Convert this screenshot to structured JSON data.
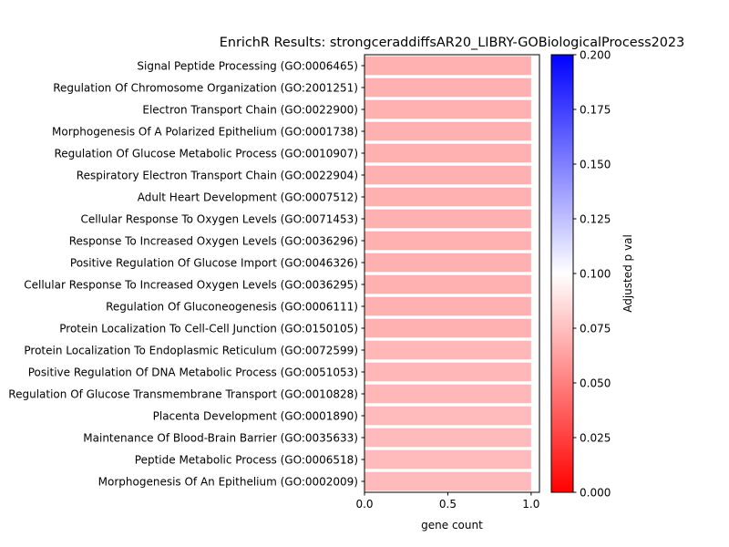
{
  "chart_data": {
    "type": "bar",
    "orientation": "horizontal",
    "title": "EnrichR Results: strongceraddiffsAR20_LIBRY-GOBiologicalProcess2023",
    "xlabel": "gene count",
    "ylabel": "",
    "xlim": [
      0,
      1.05
    ],
    "xticks": [
      "0.0",
      "0.5",
      "1.0"
    ],
    "categories": [
      "Signal Peptide Processing (GO:0006465)",
      "Regulation Of Chromosome Organization (GO:2001251)",
      "Electron Transport Chain (GO:0022900)",
      "Morphogenesis Of A Polarized Epithelium (GO:0001738)",
      "Regulation Of Glucose Metabolic Process (GO:0010907)",
      "Respiratory Electron Transport Chain (GO:0022904)",
      "Adult Heart Development (GO:0007512)",
      "Cellular Response To Oxygen Levels (GO:0071453)",
      "Response To Increased Oxygen Levels (GO:0036296)",
      "Positive Regulation Of Glucose Import (GO:0046326)",
      "Cellular Response To Increased Oxygen Levels (GO:0036295)",
      "Regulation Of Gluconeogenesis (GO:0006111)",
      "Protein Localization To Cell-Cell Junction (GO:0150105)",
      "Protein Localization To Endoplasmic Reticulum (GO:0072599)",
      "Positive Regulation Of DNA Metabolic Process (GO:0051053)",
      "Regulation Of Glucose Transmembrane Transport (GO:0010828)",
      "Placenta Development (GO:0001890)",
      "Maintenance Of Blood-Brain Barrier (GO:0035633)",
      "Peptide Metabolic Process (GO:0006518)",
      "Morphogenesis Of An Epithelium (GO:0002009)"
    ],
    "values": [
      1,
      1,
      1,
      1,
      1,
      1,
      1,
      1,
      1,
      1,
      1,
      1,
      1,
      1,
      1,
      1,
      1,
      1,
      1,
      1
    ],
    "adjusted_p": [
      0.056,
      0.056,
      0.056,
      0.056,
      0.056,
      0.056,
      0.056,
      0.056,
      0.056,
      0.056,
      0.056,
      0.056,
      0.056,
      0.06,
      0.06,
      0.06,
      0.062,
      0.062,
      0.062,
      0.062
    ],
    "colorbar": {
      "label": "Adjusted p val",
      "range": [
        0,
        0.2
      ],
      "ticks": [
        "0.000",
        "0.025",
        "0.050",
        "0.075",
        "0.100",
        "0.125",
        "0.150",
        "0.175",
        "0.200"
      ],
      "colormap": "bwr_r",
      "color_low": "#ff0000",
      "color_mid": "#ffffff",
      "color_high": "#0000ff"
    },
    "grid": false
  }
}
